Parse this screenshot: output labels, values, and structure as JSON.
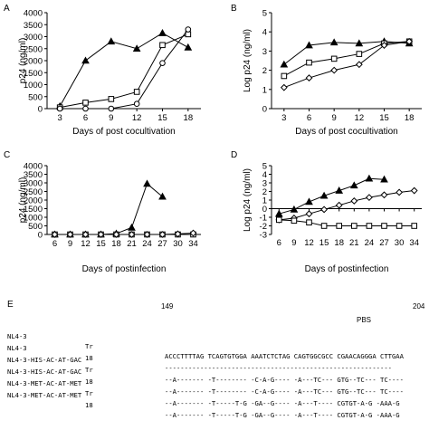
{
  "panels": [
    {
      "letter": "A",
      "chart_data": {
        "type": "line",
        "ylabel": "p24 (ng/ml)",
        "xlabel": "Days of post cocultivation",
        "x": [
          3,
          6,
          9,
          12,
          15,
          18
        ],
        "ylim": [
          0,
          4000
        ],
        "yticks": [
          "0",
          "500",
          "1000",
          "1500",
          "2000",
          "2500",
          "3000",
          "3500",
          "4000"
        ],
        "series": [
          {
            "marker": "triangle",
            "values": [
              100,
              2000,
              2800,
              2500,
              3150,
              2550
            ]
          },
          {
            "marker": "square",
            "values": [
              50,
              250,
              400,
              700,
              2650,
              3100
            ]
          },
          {
            "marker": "circle",
            "values": [
              0,
              0,
              0,
              200,
              1900,
              3300
            ]
          }
        ]
      }
    },
    {
      "letter": "B",
      "chart_data": {
        "type": "line",
        "ylabel": "Log p24 (ng/ml)",
        "xlabel": "Days of post cocultivation",
        "x": [
          3,
          6,
          9,
          12,
          15,
          18
        ],
        "ylim": [
          0,
          5
        ],
        "yticks": [
          "0",
          "1",
          "2",
          "3",
          "4",
          "5"
        ],
        "series": [
          {
            "marker": "triangle",
            "values": [
              2.3,
              3.3,
              3.45,
              3.4,
              3.5,
              3.4
            ]
          },
          {
            "marker": "square",
            "values": [
              1.7,
              2.4,
              2.6,
              2.85,
              3.4,
              3.5
            ]
          },
          {
            "marker": "diamond",
            "values": [
              1.1,
              1.6,
              2.0,
              2.3,
              3.3,
              3.5
            ]
          }
        ]
      }
    },
    {
      "letter": "C",
      "chart_data": {
        "type": "line",
        "ylabel": "p24 (ng/ml)",
        "xlabel": "Days of postinfection",
        "x": [
          6,
          9,
          12,
          15,
          18,
          21,
          24,
          27,
          30,
          34
        ],
        "ylim": [
          0,
          4000
        ],
        "yticks": [
          "0",
          "500",
          "1000",
          "1500",
          "2000",
          "2500",
          "3000",
          "3500",
          "4000"
        ],
        "series": [
          {
            "marker": "triangle",
            "values": [
              0,
              0,
              0,
              0,
              50,
              400,
              2950,
              2200,
              null,
              null
            ]
          },
          {
            "marker": "square",
            "values": [
              0,
              0,
              0,
              0,
              0,
              0,
              0,
              0,
              0,
              0
            ]
          },
          {
            "marker": "diamond",
            "values": [
              0,
              0,
              0,
              0,
              0,
              0,
              0,
              0,
              30,
              80
            ]
          }
        ]
      }
    },
    {
      "letter": "D",
      "chart_data": {
        "type": "line",
        "ylabel": "Log p24 (ng/ml)",
        "xlabel": "Days of postinfection",
        "x": [
          6,
          9,
          12,
          15,
          18,
          21,
          24,
          27,
          30,
          34
        ],
        "ylim": [
          -3,
          5
        ],
        "yticks": [
          "-3",
          "-2",
          "-1",
          "0",
          "1",
          "2",
          "3",
          "4",
          "5"
        ],
        "series": [
          {
            "marker": "triangle",
            "values": [
              -0.6,
              -0.1,
              0.8,
              1.5,
              2.1,
              2.7,
              3.5,
              3.4,
              null,
              null
            ]
          },
          {
            "marker": "diamond",
            "values": [
              -1.3,
              -1.1,
              -0.6,
              -0.1,
              0.4,
              0.9,
              1.3,
              1.6,
              1.9,
              2.1
            ]
          },
          {
            "marker": "square",
            "values": [
              -1.3,
              -1.4,
              -1.6,
              -2.0,
              -2.0,
              -2.0,
              -2.0,
              -2.0,
              -2.0,
              -2.0
            ]
          }
        ]
      }
    }
  ],
  "sequence_panel": {
    "letter": "E",
    "start_num": "149",
    "end_num": "204",
    "pbs_label": "PBS",
    "rows": [
      {
        "name": "NL4-3",
        "type": "Tr",
        "seq": "ACCCTTTTAG TCAGTGTGGA AAATCTCTAG CAGTGGCGCC CGAACAGGGA CTTGAA"
      },
      {
        "name": "NL4-3",
        "type": "18",
        "seq": "----------------------------------------------------------"
      },
      {
        "name": "NL4-3-HIS-AC-AT-GAC",
        "type": "Tr",
        "seq": "--A------- -T-------- -C-A-G---- -A---TC--- GTG--TC--- TC----"
      },
      {
        "name": "NL4-3-HIS-AC-AT-GAC",
        "type": "18",
        "seq": "--A------- -T-------- -C-A-G---- -A---TC--- GTG--TC--- TC----"
      },
      {
        "name": "NL4-3-MET-AC-AT-MET",
        "type": "Tr",
        "seq": "--A------- -T-----T-G -GA--G---- -A---T---- CGTGT-A-G -AAA-G"
      },
      {
        "name": "NL4-3-MET-AC-AT-MET",
        "type": "18",
        "seq": "--A------- -T-----T-G -GA--G---- -A---T---- CGTGT-A-G -AAA-G"
      }
    ]
  }
}
